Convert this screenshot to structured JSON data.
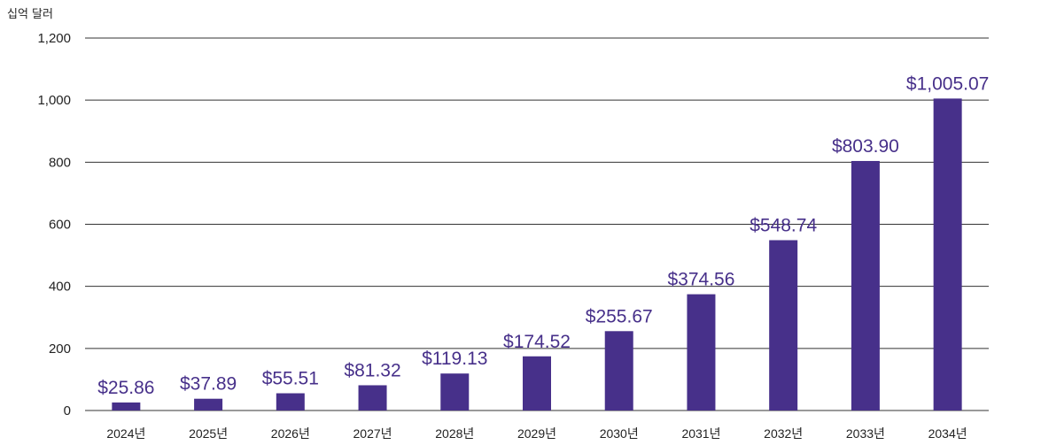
{
  "chart_data": {
    "type": "bar",
    "unit_label": "십억 달러",
    "categories": [
      "2024년",
      "2025년",
      "2026년",
      "2027년",
      "2028년",
      "2029년",
      "2030년",
      "2031년",
      "2032년",
      "2033년",
      "2034년"
    ],
    "values": [
      25.86,
      37.89,
      55.51,
      81.32,
      119.13,
      174.52,
      255.67,
      374.56,
      548.74,
      803.9,
      1005.07
    ],
    "value_labels": [
      "$25.86",
      "$37.89",
      "$55.51",
      "$81.32",
      "$119.13",
      "$174.52",
      "$255.67",
      "$374.56",
      "$548.74",
      "$803.90",
      "$1,005.07"
    ],
    "y_ticks": [
      {
        "value": 0,
        "label": "0"
      },
      {
        "value": 200,
        "label": "200"
      },
      {
        "value": 400,
        "label": "400"
      },
      {
        "value": 600,
        "label": "600"
      },
      {
        "value": 800,
        "label": "800"
      },
      {
        "value": 1000,
        "label": "1,000"
      },
      {
        "value": 1200,
        "label": "1,200"
      }
    ],
    "ylim": [
      0,
      1200
    ],
    "grid": true,
    "legend": "none",
    "bar_color": "#47308a",
    "label_color": "#47308a",
    "gridline_color": "#333333"
  }
}
